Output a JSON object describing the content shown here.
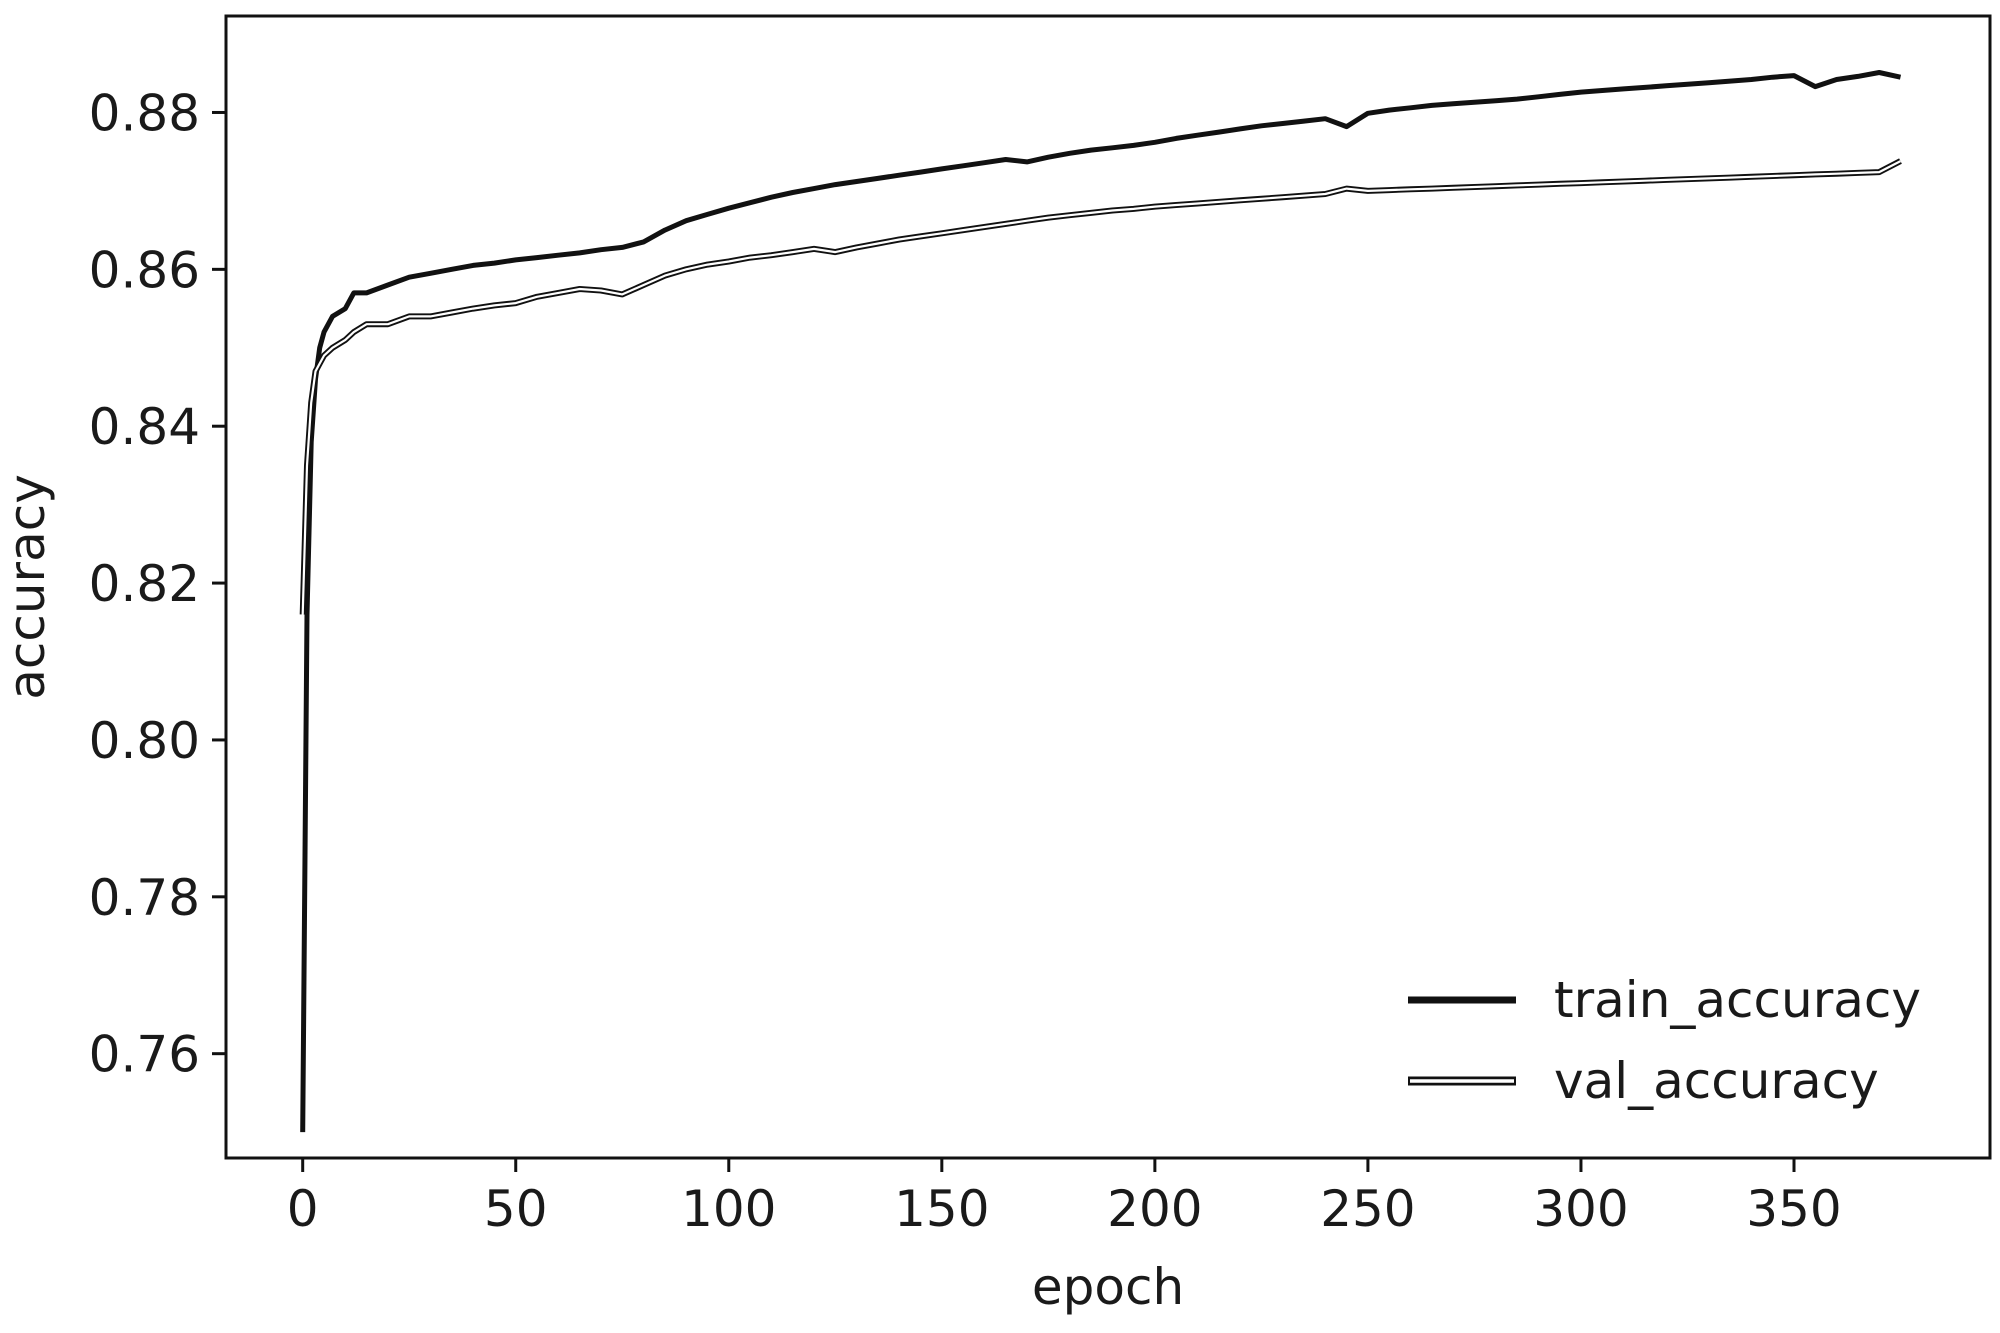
{
  "chart_data": {
    "type": "line",
    "title": "",
    "xlabel": "epoch",
    "ylabel": "accuracy",
    "xlim": [
      -18,
      396
    ],
    "ylim": [
      0.7467,
      0.8923
    ],
    "x_ticks": [
      0,
      50,
      100,
      150,
      200,
      250,
      300,
      350
    ],
    "x_tick_labels": [
      "0",
      "50",
      "100",
      "150",
      "200",
      "250",
      "300",
      "350"
    ],
    "y_ticks": [
      0.76,
      0.78,
      0.8,
      0.82,
      0.84,
      0.86,
      0.88
    ],
    "y_tick_labels": [
      "0.76",
      "0.78",
      "0.80",
      "0.82",
      "0.84",
      "0.86",
      "0.88"
    ],
    "grid": false,
    "legend_position": "lower-right",
    "series": [
      {
        "name": "train_accuracy",
        "color": "#111111",
        "style": "thick-solid",
        "points": [
          [
            0,
            0.75
          ],
          [
            1,
            0.816
          ],
          [
            2,
            0.838
          ],
          [
            3,
            0.846
          ],
          [
            4,
            0.85
          ],
          [
            5,
            0.852
          ],
          [
            7,
            0.854
          ],
          [
            10,
            0.855
          ],
          [
            12,
            0.857
          ],
          [
            15,
            0.857
          ],
          [
            20,
            0.858
          ],
          [
            25,
            0.859
          ],
          [
            30,
            0.8595
          ],
          [
            35,
            0.86
          ],
          [
            40,
            0.8605
          ],
          [
            45,
            0.8608
          ],
          [
            50,
            0.8612
          ],
          [
            55,
            0.8615
          ],
          [
            60,
            0.8618
          ],
          [
            65,
            0.8621
          ],
          [
            70,
            0.8625
          ],
          [
            75,
            0.8628
          ],
          [
            80,
            0.8635
          ],
          [
            85,
            0.865
          ],
          [
            90,
            0.8662
          ],
          [
            95,
            0.867
          ],
          [
            100,
            0.8678
          ],
          [
            105,
            0.8685
          ],
          [
            110,
            0.8692
          ],
          [
            115,
            0.8698
          ],
          [
            120,
            0.8703
          ],
          [
            125,
            0.8708
          ],
          [
            130,
            0.8712
          ],
          [
            135,
            0.8716
          ],
          [
            140,
            0.872
          ],
          [
            145,
            0.8724
          ],
          [
            150,
            0.8728
          ],
          [
            155,
            0.8732
          ],
          [
            160,
            0.8736
          ],
          [
            165,
            0.874
          ],
          [
            170,
            0.8737
          ],
          [
            175,
            0.8743
          ],
          [
            180,
            0.8748
          ],
          [
            185,
            0.8752
          ],
          [
            190,
            0.8755
          ],
          [
            195,
            0.8758
          ],
          [
            200,
            0.8762
          ],
          [
            205,
            0.8767
          ],
          [
            210,
            0.8771
          ],
          [
            215,
            0.8775
          ],
          [
            220,
            0.8779
          ],
          [
            225,
            0.8783
          ],
          [
            230,
            0.8786
          ],
          [
            235,
            0.8789
          ],
          [
            240,
            0.8792
          ],
          [
            245,
            0.8782
          ],
          [
            250,
            0.8799
          ],
          [
            255,
            0.8803
          ],
          [
            260,
            0.8806
          ],
          [
            265,
            0.8809
          ],
          [
            270,
            0.8811
          ],
          [
            275,
            0.8813
          ],
          [
            280,
            0.8815
          ],
          [
            285,
            0.8817
          ],
          [
            290,
            0.882
          ],
          [
            295,
            0.8823
          ],
          [
            300,
            0.8826
          ],
          [
            305,
            0.8828
          ],
          [
            310,
            0.883
          ],
          [
            315,
            0.8832
          ],
          [
            320,
            0.8834
          ],
          [
            325,
            0.8836
          ],
          [
            330,
            0.8838
          ],
          [
            335,
            0.884
          ],
          [
            340,
            0.8842
          ],
          [
            345,
            0.8845
          ],
          [
            350,
            0.8847
          ],
          [
            355,
            0.8833
          ],
          [
            360,
            0.8842
          ],
          [
            365,
            0.8846
          ],
          [
            370,
            0.8851
          ],
          [
            375,
            0.8845
          ]
        ]
      },
      {
        "name": "val_accuracy",
        "color": "#111111",
        "style": "thin-double",
        "points": [
          [
            0,
            0.816
          ],
          [
            1,
            0.835
          ],
          [
            2,
            0.843
          ],
          [
            3,
            0.847
          ],
          [
            4,
            0.848
          ],
          [
            5,
            0.849
          ],
          [
            7,
            0.85
          ],
          [
            10,
            0.851
          ],
          [
            12,
            0.852
          ],
          [
            15,
            0.853
          ],
          [
            20,
            0.853
          ],
          [
            25,
            0.854
          ],
          [
            30,
            0.854
          ],
          [
            35,
            0.8545
          ],
          [
            40,
            0.855
          ],
          [
            45,
            0.8554
          ],
          [
            50,
            0.8557
          ],
          [
            55,
            0.8565
          ],
          [
            60,
            0.857
          ],
          [
            65,
            0.8575
          ],
          [
            70,
            0.8573
          ],
          [
            75,
            0.8568
          ],
          [
            80,
            0.858
          ],
          [
            85,
            0.8592
          ],
          [
            90,
            0.86
          ],
          [
            95,
            0.8606
          ],
          [
            100,
            0.861
          ],
          [
            105,
            0.8615
          ],
          [
            110,
            0.8618
          ],
          [
            115,
            0.8622
          ],
          [
            120,
            0.8626
          ],
          [
            125,
            0.8622
          ],
          [
            130,
            0.8628
          ],
          [
            135,
            0.8633
          ],
          [
            140,
            0.8638
          ],
          [
            145,
            0.8642
          ],
          [
            150,
            0.8646
          ],
          [
            155,
            0.865
          ],
          [
            160,
            0.8654
          ],
          [
            165,
            0.8658
          ],
          [
            170,
            0.8662
          ],
          [
            175,
            0.8666
          ],
          [
            180,
            0.8669
          ],
          [
            185,
            0.8672
          ],
          [
            190,
            0.8675
          ],
          [
            195,
            0.8677
          ],
          [
            200,
            0.868
          ],
          [
            205,
            0.8682
          ],
          [
            210,
            0.8684
          ],
          [
            215,
            0.8686
          ],
          [
            220,
            0.8688
          ],
          [
            225,
            0.869
          ],
          [
            230,
            0.8692
          ],
          [
            235,
            0.8694
          ],
          [
            240,
            0.8696
          ],
          [
            245,
            0.8703
          ],
          [
            250,
            0.87
          ],
          [
            255,
            0.8701
          ],
          [
            260,
            0.8702
          ],
          [
            265,
            0.8703
          ],
          [
            270,
            0.8704
          ],
          [
            275,
            0.8705
          ],
          [
            280,
            0.8706
          ],
          [
            285,
            0.8707
          ],
          [
            290,
            0.8708
          ],
          [
            295,
            0.8709
          ],
          [
            300,
            0.871
          ],
          [
            305,
            0.8711
          ],
          [
            310,
            0.8712
          ],
          [
            315,
            0.8713
          ],
          [
            320,
            0.8714
          ],
          [
            325,
            0.8715
          ],
          [
            330,
            0.8716
          ],
          [
            335,
            0.8717
          ],
          [
            340,
            0.8718
          ],
          [
            345,
            0.8719
          ],
          [
            350,
            0.872
          ],
          [
            355,
            0.8721
          ],
          [
            360,
            0.8722
          ],
          [
            365,
            0.8723
          ],
          [
            370,
            0.8724
          ],
          [
            375,
            0.8738
          ]
        ]
      }
    ]
  }
}
